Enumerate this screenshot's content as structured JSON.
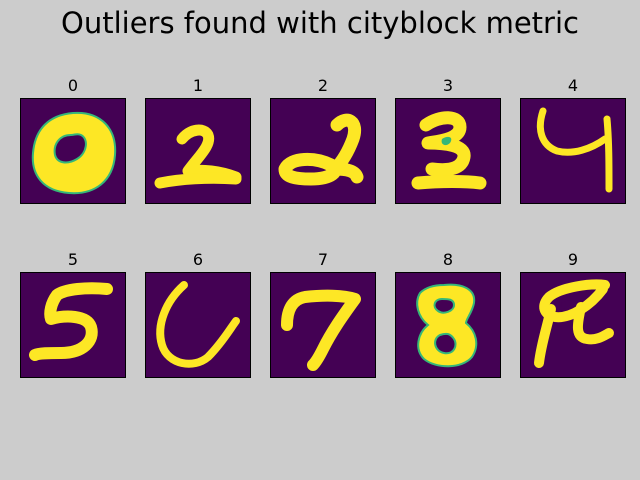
{
  "figure": {
    "title": "Outliers found with cityblock metric"
  },
  "panels": [
    {
      "label": "0"
    },
    {
      "label": "1"
    },
    {
      "label": "2"
    },
    {
      "label": "3"
    },
    {
      "label": "4"
    },
    {
      "label": "5"
    },
    {
      "label": "6"
    },
    {
      "label": "7"
    },
    {
      "label": "8"
    },
    {
      "label": "9"
    }
  ],
  "colors": {
    "background": "#cccccc",
    "image_background": "#440154",
    "digit_fill": "#fde725",
    "digit_edge": "#35b779"
  }
}
